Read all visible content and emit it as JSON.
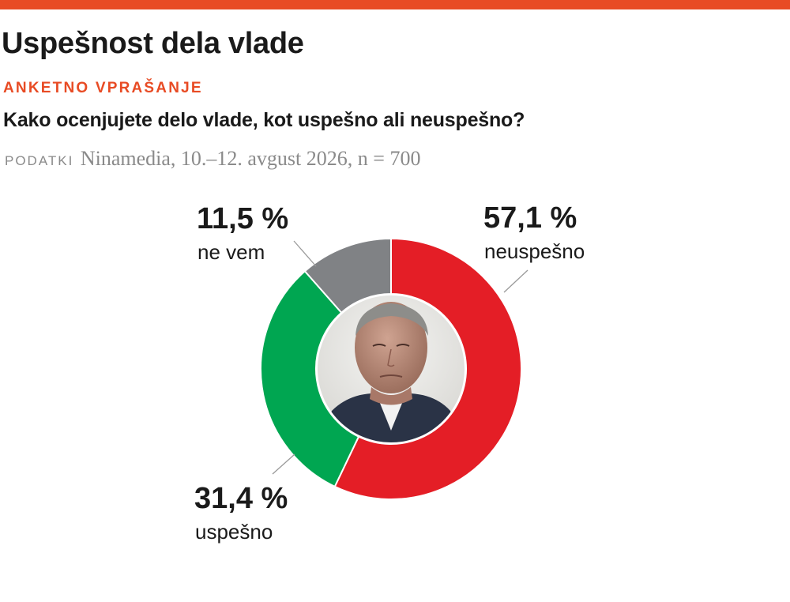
{
  "header": {
    "title": "Uspešnost dela vlade",
    "kicker": "ANKETNO VPRAŠANJE",
    "question": "Kako ocenjujete delo vlade, kot uspešno ali neuspešno?",
    "source_label": "Podatki",
    "source_text": "Ninamedia, 10.–12. avgust 2026, n = 700"
  },
  "colors": {
    "accent": "#e84b24",
    "text": "#1a1a1a",
    "muted": "#8a8a8a"
  },
  "chart_data": {
    "type": "pie",
    "donut": true,
    "center_image": "portrait-photo",
    "slices": [
      {
        "label": "neuspešno",
        "value": 57.1,
        "value_label": "57,1 %",
        "color": "#e41e26"
      },
      {
        "label": "uspešno",
        "value": 31.4,
        "value_label": "31,4 %",
        "color": "#00a651"
      },
      {
        "label": "ne vem",
        "value": 11.5,
        "value_label": "11,5 %",
        "color": "#808285"
      }
    ]
  }
}
